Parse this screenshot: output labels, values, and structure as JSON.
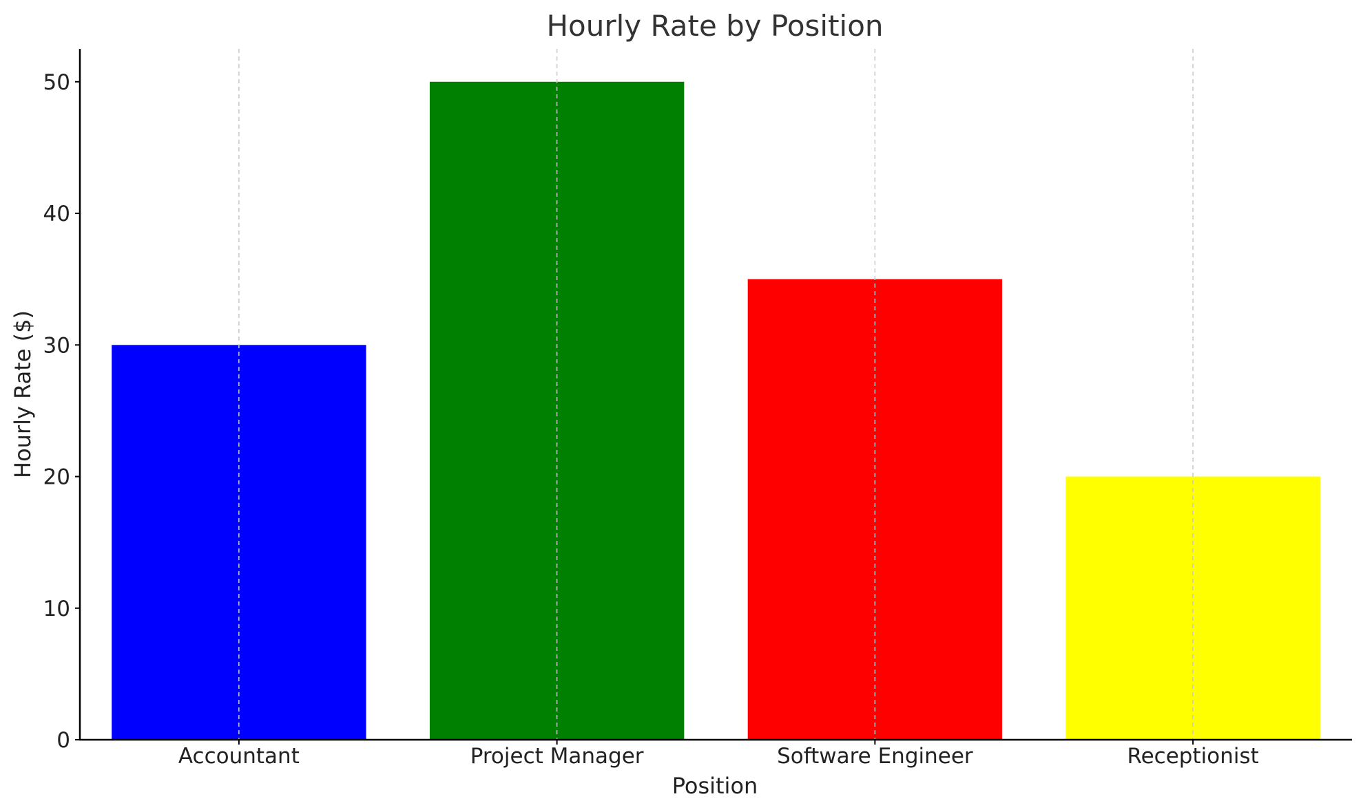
{
  "chart_data": {
    "type": "bar",
    "title": "Hourly Rate by Position",
    "xlabel": "Position",
    "ylabel": "Hourly Rate ($)",
    "categories": [
      "Accountant",
      "Project Manager",
      "Software Engineer",
      "Receptionist"
    ],
    "values": [
      30,
      50,
      35,
      20
    ],
    "colors": [
      "#0000ff",
      "#008000",
      "#ff0000",
      "#ffff00"
    ],
    "ylim": [
      0,
      52.5
    ],
    "yticks": [
      0,
      10,
      20,
      30,
      40,
      50
    ],
    "grid": "x-dashed",
    "legend": "none"
  }
}
